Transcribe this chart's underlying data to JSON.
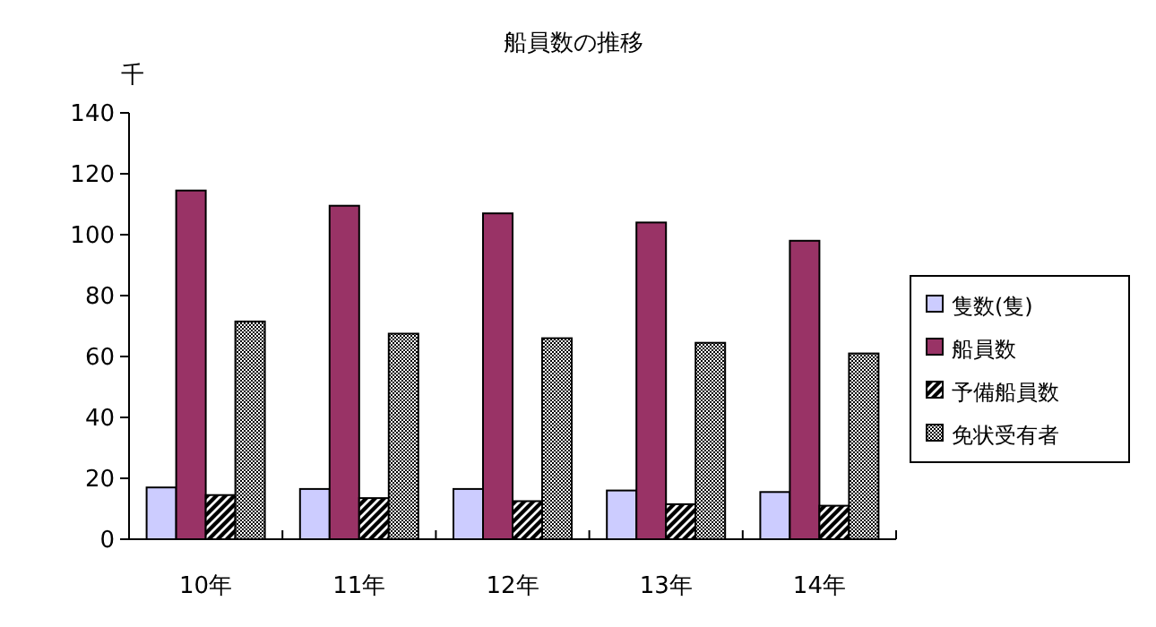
{
  "chart_data": {
    "type": "bar",
    "title": "船員数の推移",
    "ylabel": "千",
    "categories": [
      "10年",
      "11年",
      "12年",
      "13年",
      "14年"
    ],
    "series": [
      {
        "name": "隻数(隻)",
        "color": "#ccccff",
        "values": [
          17,
          16.5,
          16.5,
          16,
          15.5
        ]
      },
      {
        "name": "船員数",
        "color": "#993366",
        "values": [
          114.5,
          109.5,
          107,
          104,
          98
        ]
      },
      {
        "name": "予備船員数",
        "color": "#000000",
        "values": [
          14.5,
          13.5,
          12.5,
          11.5,
          11
        ]
      },
      {
        "name": "免状受有者",
        "color": "#000000",
        "values": [
          71.5,
          67.5,
          66,
          64.5,
          61
        ]
      }
    ],
    "ylim": [
      0,
      140
    ],
    "yticks": [
      0,
      20,
      40,
      60,
      80,
      100,
      120,
      140
    ],
    "grid": false,
    "legend": "right"
  }
}
